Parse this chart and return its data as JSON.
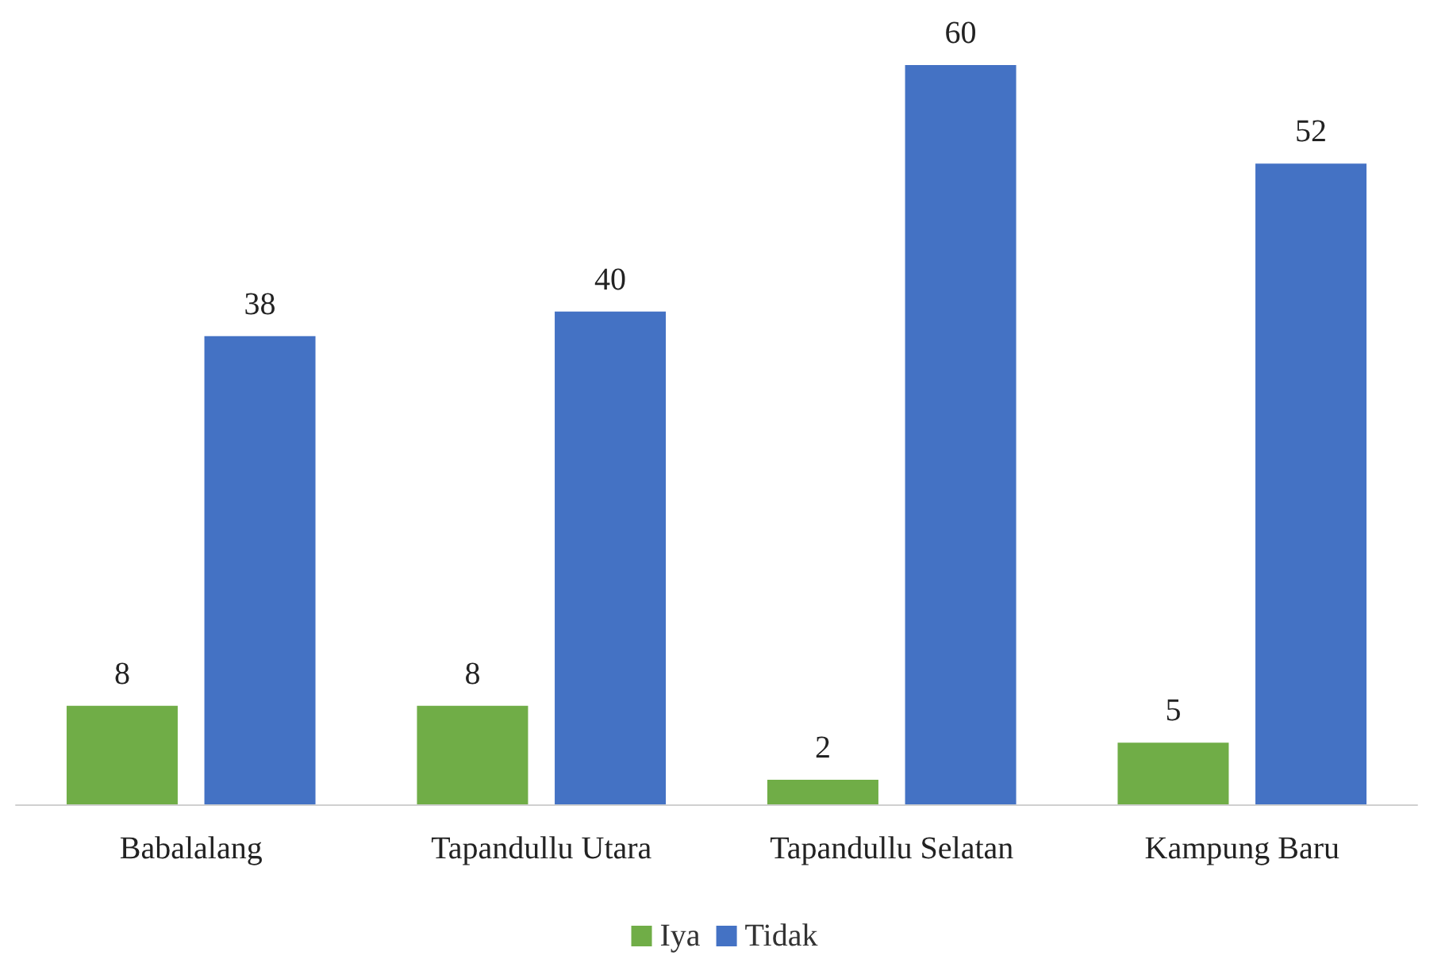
{
  "chart_data": {
    "type": "bar",
    "categories": [
      "Babalalang",
      "Tapandullu Utara",
      "Tapandullu Selatan",
      "Kampung Baru"
    ],
    "series": [
      {
        "name": "Iya",
        "color": "#70ad47",
        "values": [
          8,
          8,
          2,
          5
        ]
      },
      {
        "name": "Tidak",
        "color": "#4472c4",
        "values": [
          38,
          40,
          60,
          52
        ]
      }
    ],
    "data_labels": true,
    "legend": "bottom"
  }
}
